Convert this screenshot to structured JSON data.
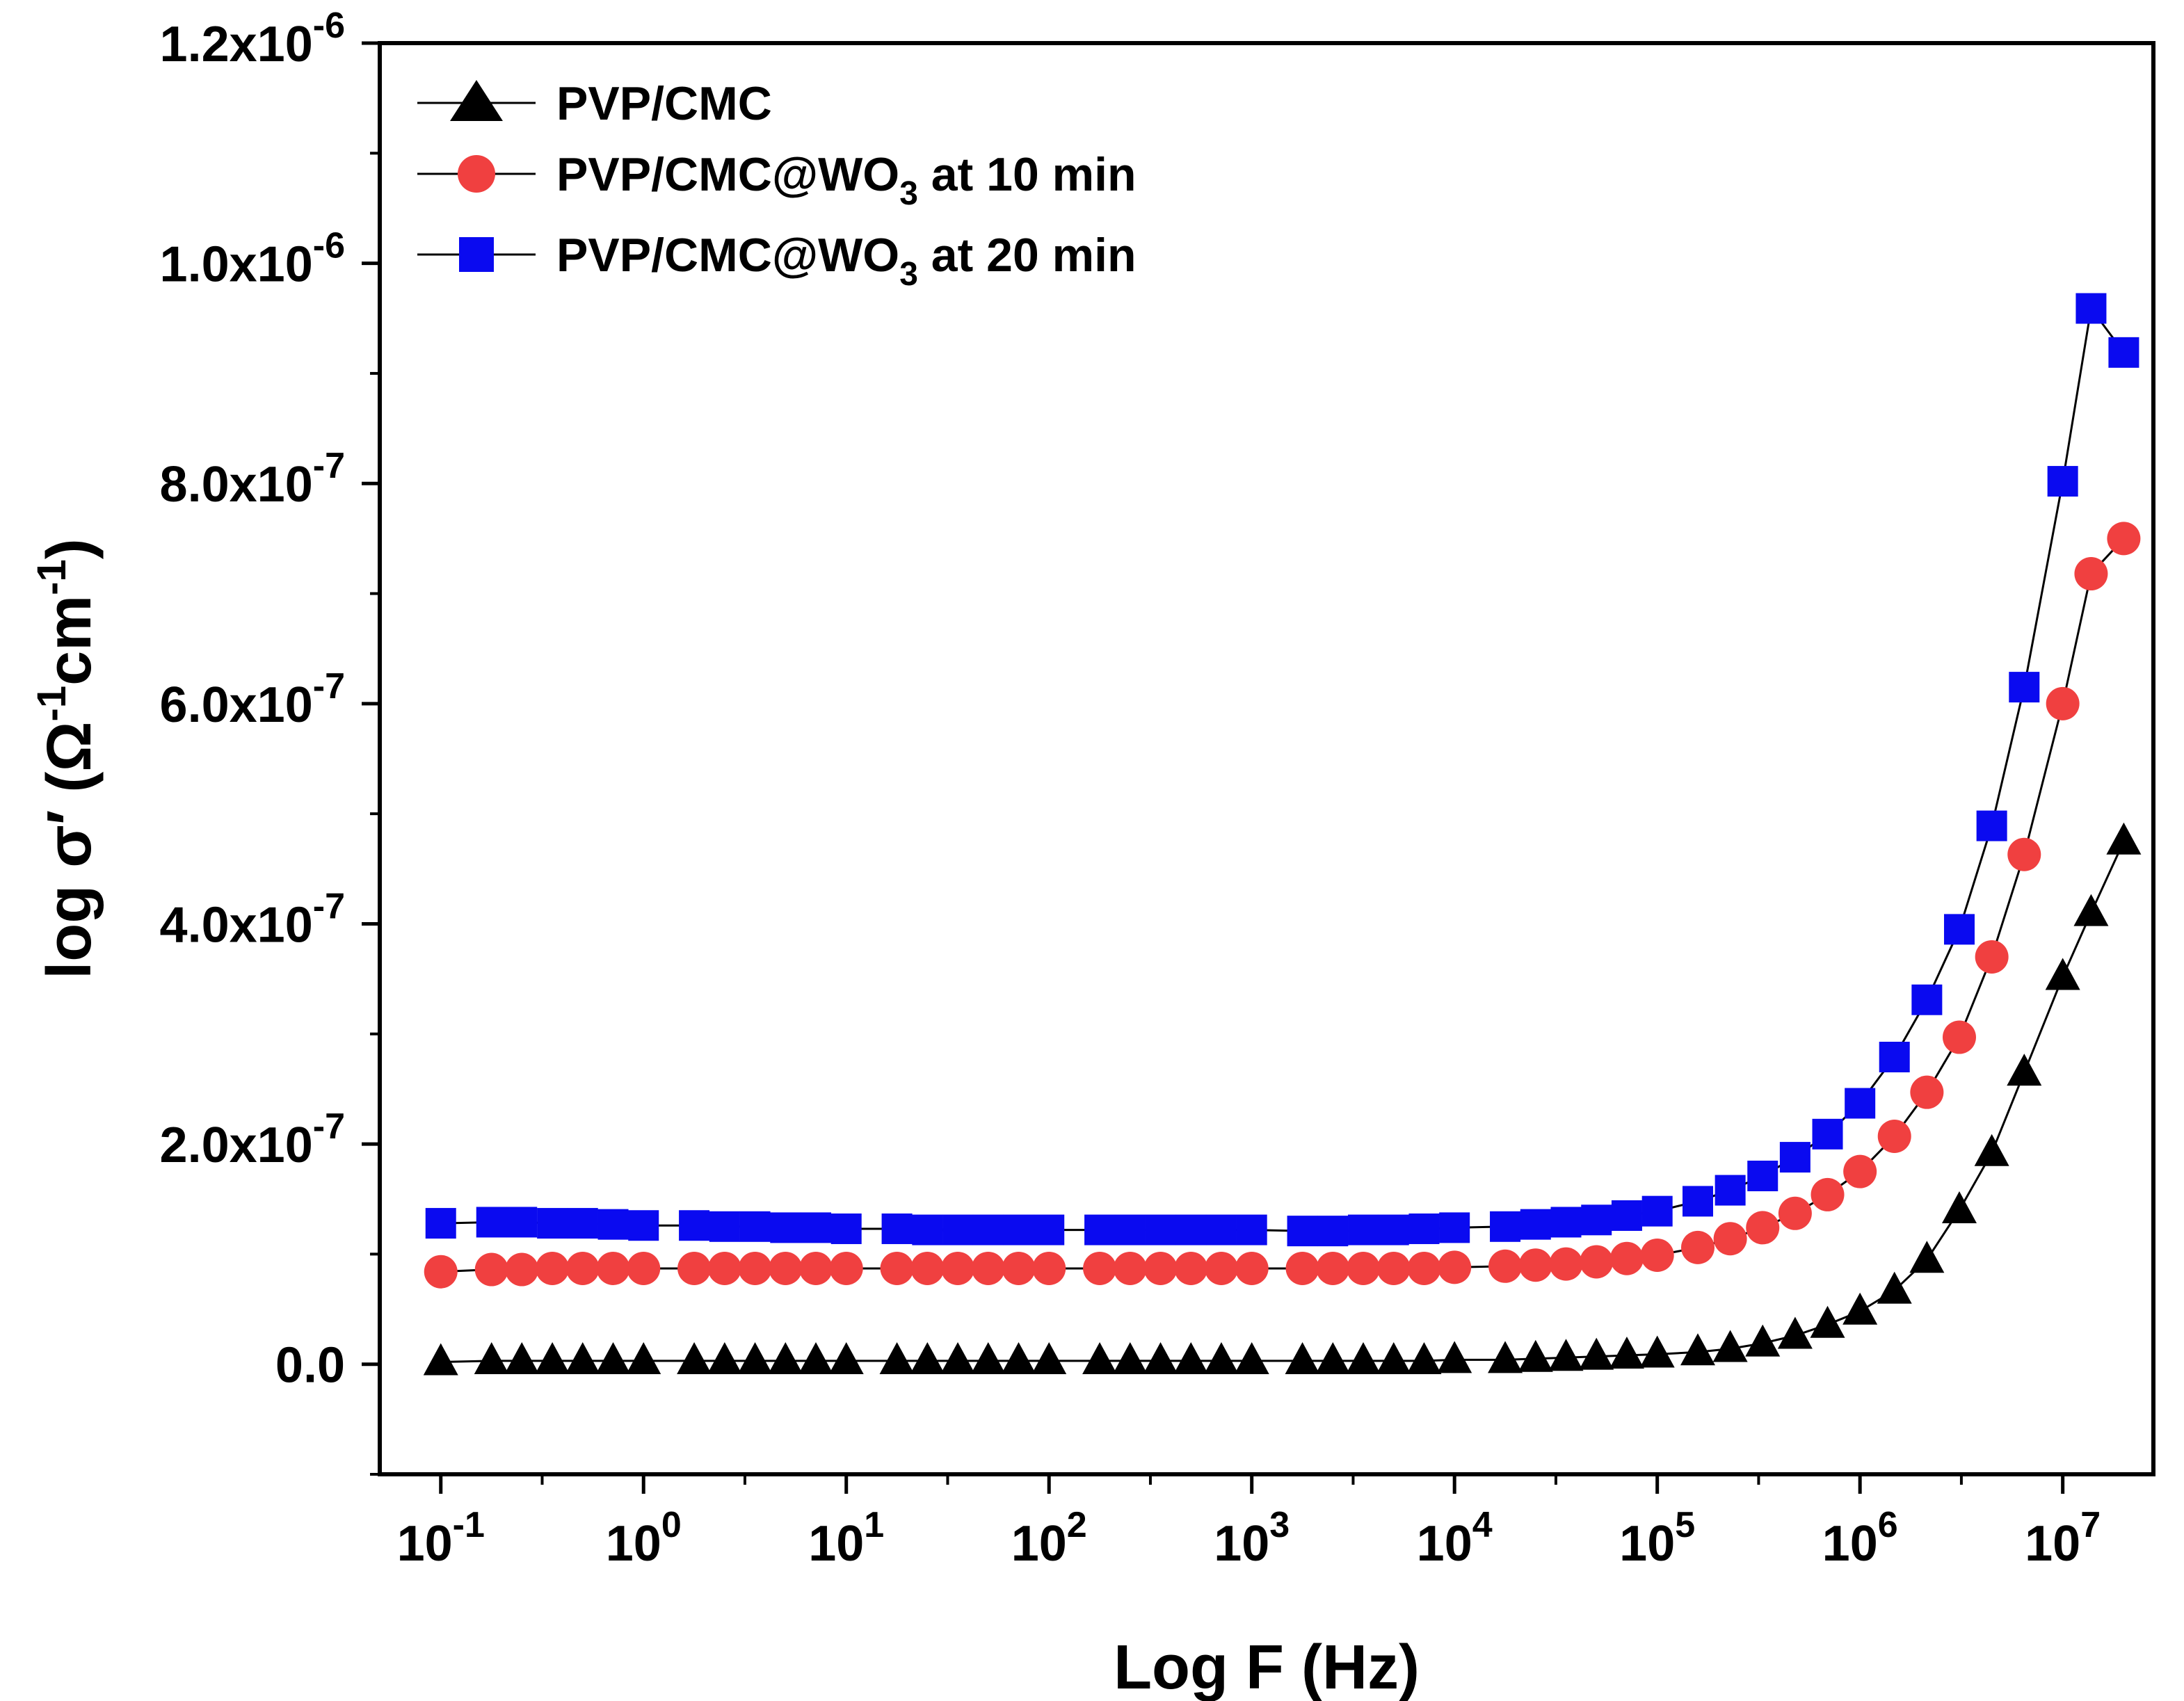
{
  "chart_data": {
    "type": "scatter",
    "xscale": "log",
    "xlabel": "Log F (Hz)",
    "ylabel": "log σ′ (Ω⁻¹cm⁻¹)",
    "ylabel_parts": {
      "main": "log σ′ (Ω",
      "sup1": "-1",
      "mid": "cm",
      "sup2": "-1",
      "end": ")"
    },
    "xlim": [
      0.05,
      28000000
    ],
    "ylim": [
      -1e-07,
      1.2e-06
    ],
    "grid": false,
    "legend_position": "top-left",
    "x_ticks": [
      {
        "value": 0.1,
        "base": "10",
        "exp": "-1"
      },
      {
        "value": 1,
        "base": "10",
        "exp": "0"
      },
      {
        "value": 10,
        "base": "10",
        "exp": "1"
      },
      {
        "value": 100,
        "base": "10",
        "exp": "2"
      },
      {
        "value": 1000,
        "base": "10",
        "exp": "3"
      },
      {
        "value": 10000,
        "base": "10",
        "exp": "4"
      },
      {
        "value": 100000,
        "base": "10",
        "exp": "5"
      },
      {
        "value": 1000000,
        "base": "10",
        "exp": "6"
      },
      {
        "value": 10000000,
        "base": "10",
        "exp": "7"
      }
    ],
    "y_ticks": [
      {
        "value": 0,
        "mant": "0.0",
        "exp": ""
      },
      {
        "value": 2e-07,
        "mant": "2.0x10",
        "exp": "-7"
      },
      {
        "value": 4e-07,
        "mant": "4.0x10",
        "exp": "-7"
      },
      {
        "value": 6e-07,
        "mant": "6.0x10",
        "exp": "-7"
      },
      {
        "value": 8e-07,
        "mant": "8.0x10",
        "exp": "-7"
      },
      {
        "value": 1e-06,
        "mant": "1.0x10",
        "exp": "-6"
      },
      {
        "value": 1.2e-06,
        "mant": "1.2x10",
        "exp": "-6"
      }
    ],
    "x": [
      0.1,
      0.178,
      0.251,
      0.355,
      0.501,
      0.708,
      1.0,
      1.778,
      2.512,
      3.548,
      5.012,
      7.079,
      10.0,
      17.78,
      25.12,
      35.48,
      50.12,
      70.79,
      100.0,
      177.8,
      251.2,
      354.8,
      501.2,
      707.9,
      1000,
      1778,
      2512,
      3548,
      5012,
      7079,
      10000,
      17780,
      25120,
      35480,
      50120,
      70790,
      100000,
      158500,
      229100,
      331100,
      478600,
      691800,
      1000000,
      1479000,
      2138000,
      3090000,
      4467000,
      6457000,
      10000000,
      13800000,
      20000000
    ],
    "series": [
      {
        "name": "PVP/CMC",
        "marker": "triangle",
        "color": "#000000",
        "values": [
          2e-09,
          3e-09,
          3e-09,
          3e-09,
          3e-09,
          3e-09,
          3e-09,
          3e-09,
          3e-09,
          3e-09,
          3e-09,
          3e-09,
          3e-09,
          3e-09,
          3e-09,
          3e-09,
          3e-09,
          3e-09,
          3e-09,
          3e-09,
          3e-09,
          3e-09,
          3e-09,
          3e-09,
          3e-09,
          3e-09,
          3e-09,
          3e-09,
          3e-09,
          3e-09,
          4e-09,
          4e-09,
          5e-09,
          6e-09,
          7e-09,
          8e-09,
          9e-09,
          1.1e-08,
          1.4e-08,
          1.9e-08,
          2.6e-08,
          3.6e-08,
          4.8e-08,
          6.7e-08,
          9.5e-08,
          1.4e-07,
          1.92e-07,
          2.65e-07,
          3.52e-07,
          4.1e-07,
          4.75e-07
        ]
      },
      {
        "name": "PVP/CMC@WO₃ at 10 min",
        "name_parts": {
          "pre": "PVP/CMC@WO",
          "sub": "3",
          "post": " at 10 min"
        },
        "marker": "circle",
        "color": "#f04040",
        "values": [
          8.4e-08,
          8.6e-08,
          8.6e-08,
          8.7e-08,
          8.7e-08,
          8.7e-08,
          8.7e-08,
          8.7e-08,
          8.7e-08,
          8.7e-08,
          8.7e-08,
          8.7e-08,
          8.7e-08,
          8.7e-08,
          8.7e-08,
          8.7e-08,
          8.7e-08,
          8.7e-08,
          8.7e-08,
          8.7e-08,
          8.7e-08,
          8.7e-08,
          8.7e-08,
          8.7e-08,
          8.7e-08,
          8.7e-08,
          8.7e-08,
          8.7e-08,
          8.7e-08,
          8.7e-08,
          8.8e-08,
          8.9e-08,
          9e-08,
          9.1e-08,
          9.3e-08,
          9.6e-08,
          9.9e-08,
          1.06e-07,
          1.14e-07,
          1.24e-07,
          1.37e-07,
          1.54e-07,
          1.75e-07,
          2.07e-07,
          2.47e-07,
          2.97e-07,
          3.7e-07,
          4.63e-07,
          6e-07,
          7.18e-07,
          7.5e-07
        ]
      },
      {
        "name": "PVP/CMC@WO₃ at 20 min",
        "name_parts": {
          "pre": "PVP/CMC@WO",
          "sub": "3",
          "post": " at 20 min"
        },
        "marker": "square",
        "color": "#0a0af0",
        "values": [
          1.28e-07,
          1.29e-07,
          1.29e-07,
          1.28e-07,
          1.28e-07,
          1.27e-07,
          1.26e-07,
          1.26e-07,
          1.25e-07,
          1.25e-07,
          1.24e-07,
          1.24e-07,
          1.23e-07,
          1.23e-07,
          1.22e-07,
          1.22e-07,
          1.22e-07,
          1.22e-07,
          1.22e-07,
          1.22e-07,
          1.22e-07,
          1.22e-07,
          1.22e-07,
          1.22e-07,
          1.22e-07,
          1.21e-07,
          1.21e-07,
          1.22e-07,
          1.22e-07,
          1.23e-07,
          1.24e-07,
          1.25e-07,
          1.27e-07,
          1.29e-07,
          1.31e-07,
          1.35e-07,
          1.39e-07,
          1.48e-07,
          1.58e-07,
          1.71e-07,
          1.88e-07,
          2.09e-07,
          2.37e-07,
          2.79e-07,
          3.31e-07,
          3.95e-07,
          4.89e-07,
          6.15e-07,
          8.02e-07,
          9.59e-07,
          9.19e-07
        ]
      }
    ]
  }
}
